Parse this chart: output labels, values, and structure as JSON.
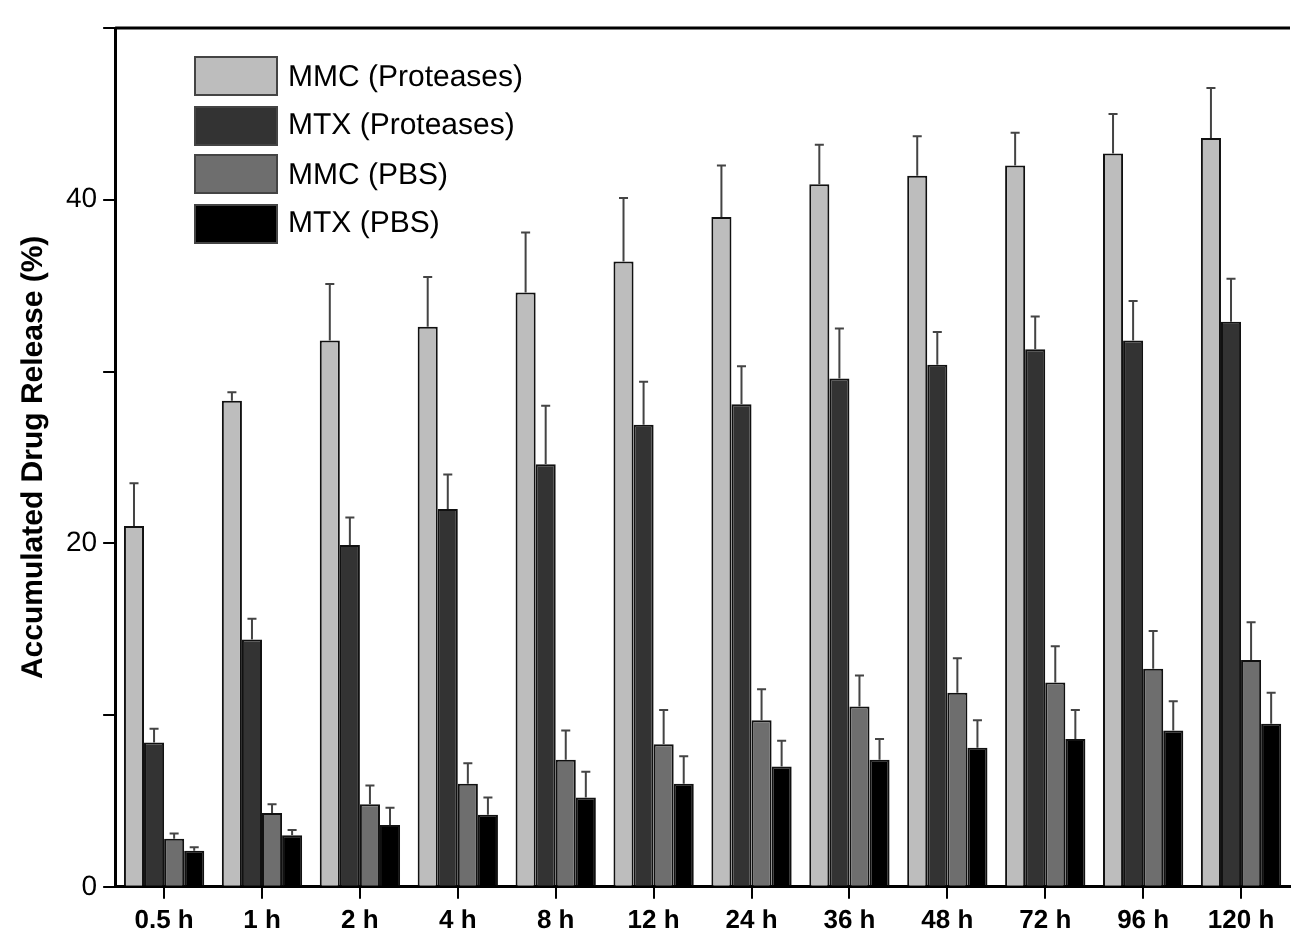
{
  "chart_data": {
    "type": "bar",
    "ylabel": "Accumulated Drug Release (%)",
    "categories": [
      "0.5 h",
      "1 h",
      "2 h",
      "4 h",
      "8 h",
      "12 h",
      "24 h",
      "36 h",
      "48 h",
      "72 h",
      "96 h",
      "120 h"
    ],
    "series": [
      {
        "name": "MMC (Proteases)",
        "color": "#bdbdbd",
        "values": [
          21.0,
          28.3,
          31.8,
          32.6,
          34.6,
          36.4,
          39.0,
          40.9,
          41.4,
          42.0,
          42.7,
          43.6
        ],
        "errors": [
          [
            21.0,
            23.5
          ],
          [
            28.3,
            28.8
          ],
          [
            31.8,
            35.1
          ],
          [
            32.6,
            35.5
          ],
          [
            34.6,
            38.1
          ],
          [
            36.4,
            40.1
          ],
          [
            39.0,
            42.0
          ],
          [
            40.9,
            43.2
          ],
          [
            41.4,
            43.7
          ],
          [
            42.0,
            43.9
          ],
          [
            42.7,
            45.0
          ],
          [
            43.6,
            46.5
          ]
        ]
      },
      {
        "name": "MTX (Proteases)",
        "color": "#333333",
        "values": [
          8.4,
          14.4,
          19.9,
          22.0,
          24.6,
          26.9,
          28.1,
          29.6,
          30.4,
          31.3,
          31.8,
          32.9
        ],
        "errors": [
          [
            8.4,
            9.2
          ],
          [
            14.4,
            15.6
          ],
          [
            19.9,
            21.5
          ],
          [
            22.0,
            24.0
          ],
          [
            24.6,
            28.0
          ],
          [
            26.9,
            29.4
          ],
          [
            28.1,
            30.3
          ],
          [
            29.6,
            32.5
          ],
          [
            30.4,
            32.3
          ],
          [
            31.3,
            33.2
          ],
          [
            31.8,
            34.1
          ],
          [
            32.9,
            35.4
          ]
        ]
      },
      {
        "name": "MMC (PBS)",
        "color": "#6e6e6e",
        "values": [
          2.8,
          4.3,
          4.8,
          6.0,
          7.4,
          8.3,
          9.7,
          10.5,
          11.3,
          11.9,
          12.7,
          13.2
        ],
        "errors": [
          [
            2.8,
            3.1
          ],
          [
            4.3,
            4.8
          ],
          [
            4.8,
            5.9
          ],
          [
            6.0,
            7.2
          ],
          [
            7.4,
            9.1
          ],
          [
            8.3,
            10.3
          ],
          [
            9.7,
            11.5
          ],
          [
            10.5,
            12.3
          ],
          [
            11.3,
            13.3
          ],
          [
            11.9,
            14.0
          ],
          [
            12.7,
            14.9
          ],
          [
            13.2,
            15.4
          ]
        ]
      },
      {
        "name": "MTX (PBS)",
        "color": "#000000",
        "values": [
          2.1,
          3.0,
          3.6,
          4.2,
          5.2,
          6.0,
          7.0,
          7.4,
          8.1,
          8.6,
          9.1,
          9.5
        ],
        "errors": [
          [
            2.1,
            2.3
          ],
          [
            3.0,
            3.3
          ],
          [
            3.6,
            4.6
          ],
          [
            4.2,
            5.2
          ],
          [
            5.2,
            6.7
          ],
          [
            6.0,
            7.6
          ],
          [
            7.0,
            8.5
          ],
          [
            7.4,
            8.6
          ],
          [
            8.1,
            9.7
          ],
          [
            8.6,
            10.3
          ],
          [
            9.1,
            10.8
          ],
          [
            9.5,
            11.3
          ]
        ]
      }
    ],
    "ylim": [
      0,
      50
    ],
    "yticks": [
      0,
      {
        "value": 10,
        "label": null
      },
      20,
      {
        "value": 30,
        "label": null
      },
      40,
      {
        "value": 50,
        "label": null
      }
    ],
    "grid": false,
    "legend": "top left"
  }
}
